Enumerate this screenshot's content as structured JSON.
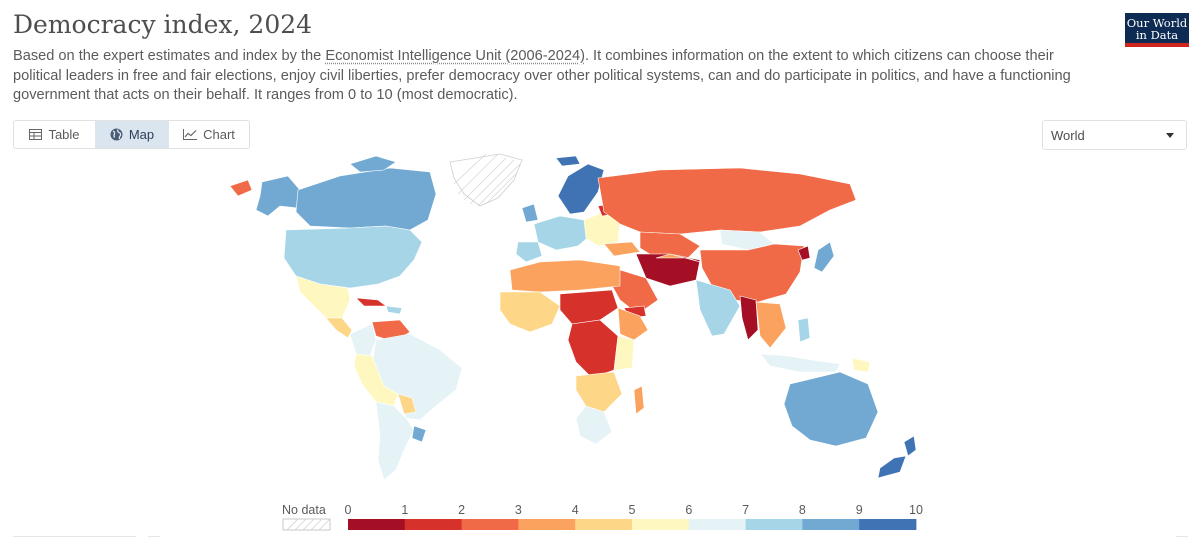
{
  "header": {
    "title": "Democracy index, 2024",
    "subtitle_pre": "Based on the expert estimates and index by the ",
    "source_link": "Economist Intelligence Unit (2006-2024)",
    "subtitle_post": ". It combines information on the extent to which citizens can choose their political leaders in free and fair elections, enjoy civil liberties, prefer democracy over other political systems, can and do participate in politics, and have a functioning government that acts on their behalf. It ranges from 0 to 10 (most democratic)."
  },
  "logo": {
    "line1": "Our World",
    "line2": "in Data",
    "bg": "#0e2b54",
    "accent": "#ce261e"
  },
  "tabs": [
    {
      "label": "Table",
      "icon": "table-icon",
      "active": false
    },
    {
      "label": "Map",
      "icon": "globe-icon",
      "active": true
    },
    {
      "label": "Chart",
      "icon": "line-chart-icon",
      "active": false
    }
  ],
  "region_select": {
    "value": "World"
  },
  "legend": {
    "no_data_label": "No data",
    "ticks": [
      "0",
      "1",
      "2",
      "3",
      "4",
      "5",
      "6",
      "7",
      "8",
      "9",
      "10"
    ],
    "colors": [
      "#a50f25",
      "#d6312b",
      "#f06a47",
      "#fba35e",
      "#fdd787",
      "#fef8c0",
      "#e5f3f6",
      "#a7d5e8",
      "#72a9d2",
      "#4073b4"
    ]
  }
}
